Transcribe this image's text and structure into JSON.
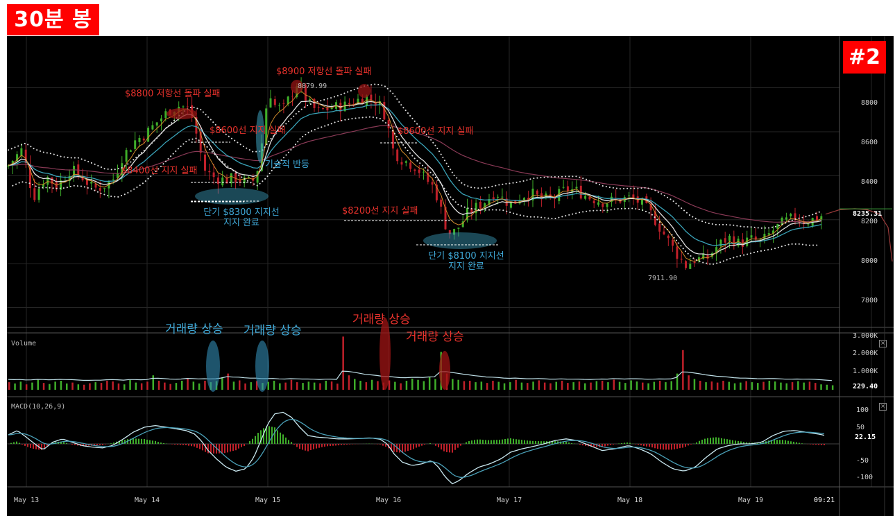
{
  "header": {
    "timeframe_tag": "30분 봉",
    "image_badge": "#2"
  },
  "colors": {
    "up": "#3fae2a",
    "down": "#c0202a",
    "background": "#000000",
    "accent_red": "#e8322c",
    "accent_blue": "#3fa9d8",
    "tag_bg": "#ff0000"
  },
  "annotations": {
    "r8800": "$8800 저항선 돌파 실패",
    "r8900": "$8900 저항선 돌파 실패",
    "s8600a": "$8600선 지지 실패",
    "s8600b": "$8600선 지지 실패",
    "s8400": "$8400선 지지 실패",
    "s8200": "$8200선 지지 실패",
    "rebound": "기술적 반등",
    "s8300_l1": "단기 $8300 지지선",
    "s8300_l2": "지지 완료",
    "s8100_l1": "단기 $8100 지지선",
    "s8100_l2": "지지 완료",
    "vol_up_1": "거래량 상승",
    "vol_up_2": "거래량 상승",
    "vol_up_3": "거래량 상승",
    "vol_up_4": "거래량 상승"
  },
  "price_labels": {
    "high": "8879.99",
    "low": "7911.90"
  },
  "panels": {
    "volume_title": "Volume",
    "macd_title": "MACD(10,26,9)",
    "close_btn": "×"
  },
  "chart_data": {
    "type": "candlestick",
    "x_labels": [
      "May 13",
      "May 14",
      "May 15",
      "May 16",
      "May 17",
      "May 18",
      "May 19",
      "09:21"
    ],
    "price_axis": {
      "ticks": [
        "8800",
        "8600",
        "8400",
        "8200",
        "8000",
        "7800"
      ],
      "ylim": [
        7710,
        9010
      ],
      "last": "8235.31"
    },
    "volume_axis": {
      "ticks": [
        "3.000K",
        "2.000K",
        "1.000K"
      ],
      "last": "229.40"
    },
    "macd_axis": {
      "ticks": [
        "100",
        "50",
        "-50",
        "-100"
      ],
      "last": "22.15"
    },
    "price_path": [
      [
        0,
        8440
      ],
      [
        22,
        8520
      ],
      [
        38,
        8300
      ],
      [
        56,
        8400
      ],
      [
        72,
        8350
      ],
      [
        92,
        8430
      ],
      [
        110,
        8390
      ],
      [
        124,
        8340
      ],
      [
        138,
        8350
      ],
      [
        155,
        8390
      ],
      [
        165,
        8480
      ],
      [
        185,
        8560
      ],
      [
        200,
        8590
      ],
      [
        218,
        8650
      ],
      [
        235,
        8700
      ],
      [
        250,
        8720
      ],
      [
        262,
        8700
      ],
      [
        270,
        8640
      ],
      [
        276,
        8540
      ],
      [
        286,
        8420
      ],
      [
        300,
        8390
      ],
      [
        315,
        8380
      ],
      [
        330,
        8390
      ],
      [
        345,
        8370
      ],
      [
        358,
        8380
      ],
      [
        366,
        8510
      ],
      [
        372,
        8680
      ],
      [
        378,
        8790
      ],
      [
        386,
        8720
      ],
      [
        398,
        8700
      ],
      [
        408,
        8760
      ],
      [
        418,
        8820
      ],
      [
        426,
        8780
      ],
      [
        434,
        8730
      ],
      [
        448,
        8690
      ],
      [
        468,
        8710
      ],
      [
        488,
        8720
      ],
      [
        502,
        8740
      ],
      [
        518,
        8760
      ],
      [
        530,
        8740
      ],
      [
        541,
        8710
      ],
      [
        548,
        8640
      ],
      [
        556,
        8520
      ],
      [
        566,
        8480
      ],
      [
        578,
        8460
      ],
      [
        590,
        8440
      ],
      [
        602,
        8390
      ],
      [
        614,
        8350
      ],
      [
        622,
        8290
      ],
      [
        630,
        8190
      ],
      [
        640,
        8130
      ],
      [
        652,
        8170
      ],
      [
        664,
        8230
      ],
      [
        678,
        8260
      ],
      [
        692,
        8290
      ],
      [
        704,
        8330
      ],
      [
        716,
        8290
      ],
      [
        728,
        8270
      ],
      [
        742,
        8310
      ],
      [
        756,
        8320
      ],
      [
        772,
        8290
      ],
      [
        790,
        8300
      ],
      [
        806,
        8340
      ],
      [
        822,
        8330
      ],
      [
        840,
        8300
      ],
      [
        860,
        8280
      ],
      [
        880,
        8290
      ],
      [
        900,
        8300
      ],
      [
        916,
        8270
      ],
      [
        930,
        8220
      ],
      [
        946,
        8140
      ],
      [
        962,
        8060
      ],
      [
        978,
        7990
      ],
      [
        992,
        8020
      ],
      [
        1008,
        8020
      ],
      [
        1024,
        8080
      ],
      [
        1040,
        8120
      ],
      [
        1056,
        8090
      ],
      [
        1072,
        8110
      ],
      [
        1088,
        8100
      ],
      [
        1104,
        8150
      ],
      [
        1120,
        8190
      ],
      [
        1136,
        8210
      ],
      [
        1152,
        8190
      ],
      [
        1168,
        8210
      ],
      [
        1180,
        8225
      ]
    ],
    "price_ext": [
      [
        1180,
        8225
      ],
      [
        1200,
        8245
      ],
      [
        1222,
        8250
      ],
      [
        1240,
        8245
      ],
      [
        1258,
        8225
      ],
      [
        1270,
        8165
      ],
      [
        1276,
        8010
      ]
    ],
    "volume": [
      0.42,
      0.35,
      0.45,
      0.3,
      0.4,
      0.55,
      0.38,
      0.32,
      0.45,
      0.5,
      0.35,
      0.4,
      0.3,
      0.28,
      0.36,
      0.42,
      0.38,
      0.5,
      0.46,
      0.35,
      0.3,
      0.55,
      0.4,
      0.36,
      0.45,
      0.8,
      0.5,
      0.4,
      0.32,
      0.38,
      0.5,
      0.62,
      0.45,
      0.35,
      0.5,
      0.42,
      0.48,
      0.7,
      0.9,
      0.45,
      0.52,
      0.35,
      0.42,
      0.48,
      0.38,
      0.44,
      0.5,
      0.36,
      0.4,
      0.55,
      0.42,
      0.38,
      0.45,
      0.4,
      0.36,
      0.5,
      0.46,
      0.34,
      2.95,
      0.8,
      0.6,
      0.5,
      0.42,
      0.55,
      0.48,
      0.4,
      0.52,
      0.44,
      0.36,
      0.5,
      0.62,
      0.55,
      0.48,
      0.7,
      0.6,
      2.1,
      0.9,
      0.6,
      0.55,
      0.48,
      0.5,
      0.42,
      0.45,
      0.38,
      0.5,
      0.44,
      0.36,
      0.42,
      0.55,
      0.4,
      0.38,
      0.45,
      0.52,
      0.4,
      0.36,
      0.44,
      0.5,
      0.38,
      0.42,
      0.46,
      0.36,
      0.4,
      0.48,
      0.5,
      0.42,
      0.56,
      0.44,
      0.38,
      0.52,
      0.46,
      0.4,
      0.36,
      0.44,
      0.5,
      0.42,
      0.48,
      0.9,
      2.2,
      0.8,
      0.6,
      0.5,
      0.42,
      0.46,
      0.4,
      0.5,
      0.44,
      0.36,
      0.4,
      0.48,
      0.42,
      0.38,
      0.44,
      0.5,
      0.46,
      0.4,
      0.36,
      0.42,
      0.48,
      0.4,
      0.45,
      0.38,
      0.3,
      0.28,
      0.25
    ],
    "macd": [
      [
        0,
        25
      ],
      [
        15,
        40
      ],
      [
        28,
        20
      ],
      [
        40,
        0
      ],
      [
        52,
        -18
      ],
      [
        66,
        5
      ],
      [
        80,
        15
      ],
      [
        94,
        5
      ],
      [
        108,
        -5
      ],
      [
        124,
        -10
      ],
      [
        138,
        -12
      ],
      [
        152,
        -5
      ],
      [
        168,
        15
      ],
      [
        182,
        35
      ],
      [
        198,
        50
      ],
      [
        214,
        55
      ],
      [
        230,
        50
      ],
      [
        244,
        45
      ],
      [
        258,
        40
      ],
      [
        270,
        30
      ],
      [
        280,
        10
      ],
      [
        290,
        -20
      ],
      [
        302,
        -45
      ],
      [
        316,
        -70
      ],
      [
        330,
        -82
      ],
      [
        344,
        -75
      ],
      [
        356,
        -40
      ],
      [
        366,
        10
      ],
      [
        376,
        60
      ],
      [
        386,
        90
      ],
      [
        398,
        95
      ],
      [
        410,
        80
      ],
      [
        422,
        50
      ],
      [
        434,
        25
      ],
      [
        448,
        20
      ],
      [
        462,
        18
      ],
      [
        476,
        15
      ],
      [
        492,
        15
      ],
      [
        508,
        16
      ],
      [
        524,
        18
      ],
      [
        538,
        14
      ],
      [
        548,
        0
      ],
      [
        558,
        -30
      ],
      [
        570,
        -55
      ],
      [
        584,
        -65
      ],
      [
        598,
        -60
      ],
      [
        612,
        -50
      ],
      [
        622,
        -70
      ],
      [
        632,
        -100
      ],
      [
        642,
        -120
      ],
      [
        652,
        -110
      ],
      [
        664,
        -90
      ],
      [
        680,
        -70
      ],
      [
        696,
        -60
      ],
      [
        712,
        -45
      ],
      [
        726,
        -25
      ],
      [
        742,
        -15
      ],
      [
        758,
        -8
      ],
      [
        774,
        0
      ],
      [
        790,
        10
      ],
      [
        806,
        15
      ],
      [
        822,
        10
      ],
      [
        840,
        -5
      ],
      [
        858,
        -20
      ],
      [
        876,
        -15
      ],
      [
        896,
        -5
      ],
      [
        912,
        -15
      ],
      [
        928,
        -30
      ],
      [
        944,
        -55
      ],
      [
        960,
        -75
      ],
      [
        976,
        -82
      ],
      [
        992,
        -70
      ],
      [
        1008,
        -40
      ],
      [
        1024,
        -15
      ],
      [
        1040,
        -5
      ],
      [
        1056,
        0
      ],
      [
        1072,
        0
      ],
      [
        1088,
        5
      ],
      [
        1104,
        25
      ],
      [
        1120,
        38
      ],
      [
        1136,
        40
      ],
      [
        1152,
        35
      ],
      [
        1168,
        30
      ],
      [
        1180,
        25
      ]
    ]
  }
}
